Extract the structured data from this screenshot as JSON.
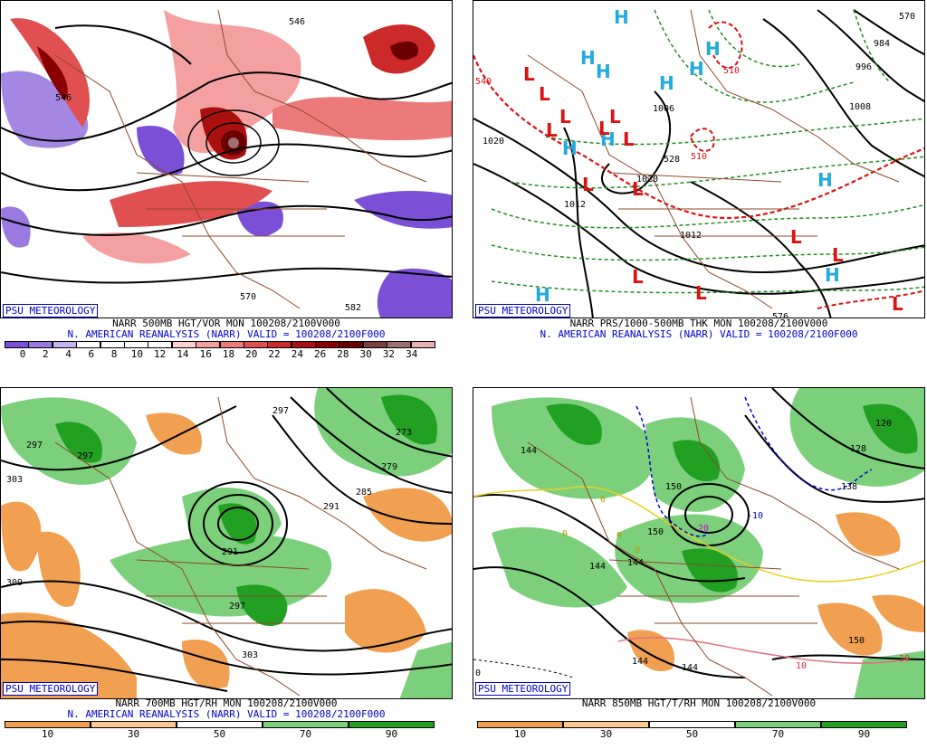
{
  "panels": [
    {
      "credit": "PSU METEOROLOGY",
      "title": "NARR 500MB HGT/VOR MON 100208/2100V000",
      "subtitle": "N. AMERICAN REANALYSIS (NARR) VALID = 100208/2100F000",
      "contour_labels": [
        "546",
        "546",
        "570",
        "582"
      ],
      "colorbar": {
        "labels": [
          "0",
          "2",
          "4",
          "6",
          "8",
          "10",
          "12",
          "14",
          "16",
          "18",
          "20",
          "22",
          "24",
          "26",
          "28",
          "30",
          "32",
          "34"
        ],
        "colors": [
          "#7b4fd6",
          "#9a7ae0",
          "#c3b3f0",
          "#ffffff",
          "#ffffff",
          "#ffffff",
          "#ffffff",
          "#ffd0d0",
          "#f4a0a0",
          "#ec7a7a",
          "#e05050",
          "#cc2a2a",
          "#aa1010",
          "#880000",
          "#6a0000",
          "#7a4040",
          "#a07070",
          "#e8b0b0"
        ]
      }
    },
    {
      "credit": "PSU METEOROLOGY",
      "title": "NARR PRS/1000-500MB THK MON 100208/2100V000",
      "subtitle": "N. AMERICAN REANALYSIS (NARR) VALID = 100208/2100F000",
      "contour_labels": [
        "1020",
        "1012",
        "1020",
        "1012",
        "1006",
        "1008",
        "996",
        "984",
        "540",
        "528",
        "510",
        "570",
        "510",
        "576"
      ],
      "high_symbol": "H",
      "low_symbol": "L"
    },
    {
      "credit": "PSU METEOROLOGY",
      "title": "NARR 700MB HGT/RH MON 100208/2100V000",
      "subtitle": "N. AMERICAN REANALYSIS (NARR) VALID = 100208/2100F000",
      "contour_labels": [
        "297",
        "297",
        "303",
        "291",
        "279",
        "273",
        "285",
        "291",
        "297",
        "303",
        "309",
        "297"
      ],
      "colorbar": {
        "labels": [
          "10",
          "30",
          "50",
          "70",
          "90"
        ],
        "colors": [
          "#f0a050",
          "#f8c890",
          "#ffffff",
          "#7cd07c",
          "#22a022"
        ]
      }
    },
    {
      "credit": "PSU METEOROLOGY",
      "title": "NARR 850MB HGT/T/RH MON 100208/2100V000",
      "subtitle": "",
      "contour_labels": [
        "144",
        "150",
        "150",
        "144",
        "144",
        "144",
        "138",
        "150",
        "120",
        "128",
        "-20",
        "-10",
        "0",
        "0",
        "0",
        "0",
        "10",
        "10",
        "144",
        "0"
      ],
      "colorbar": {
        "labels": [
          "10",
          "30",
          "50",
          "70",
          "90"
        ],
        "colors": [
          "#f0a050",
          "#f8c890",
          "#ffffff",
          "#7cd07c",
          "#22a022"
        ]
      }
    }
  ]
}
